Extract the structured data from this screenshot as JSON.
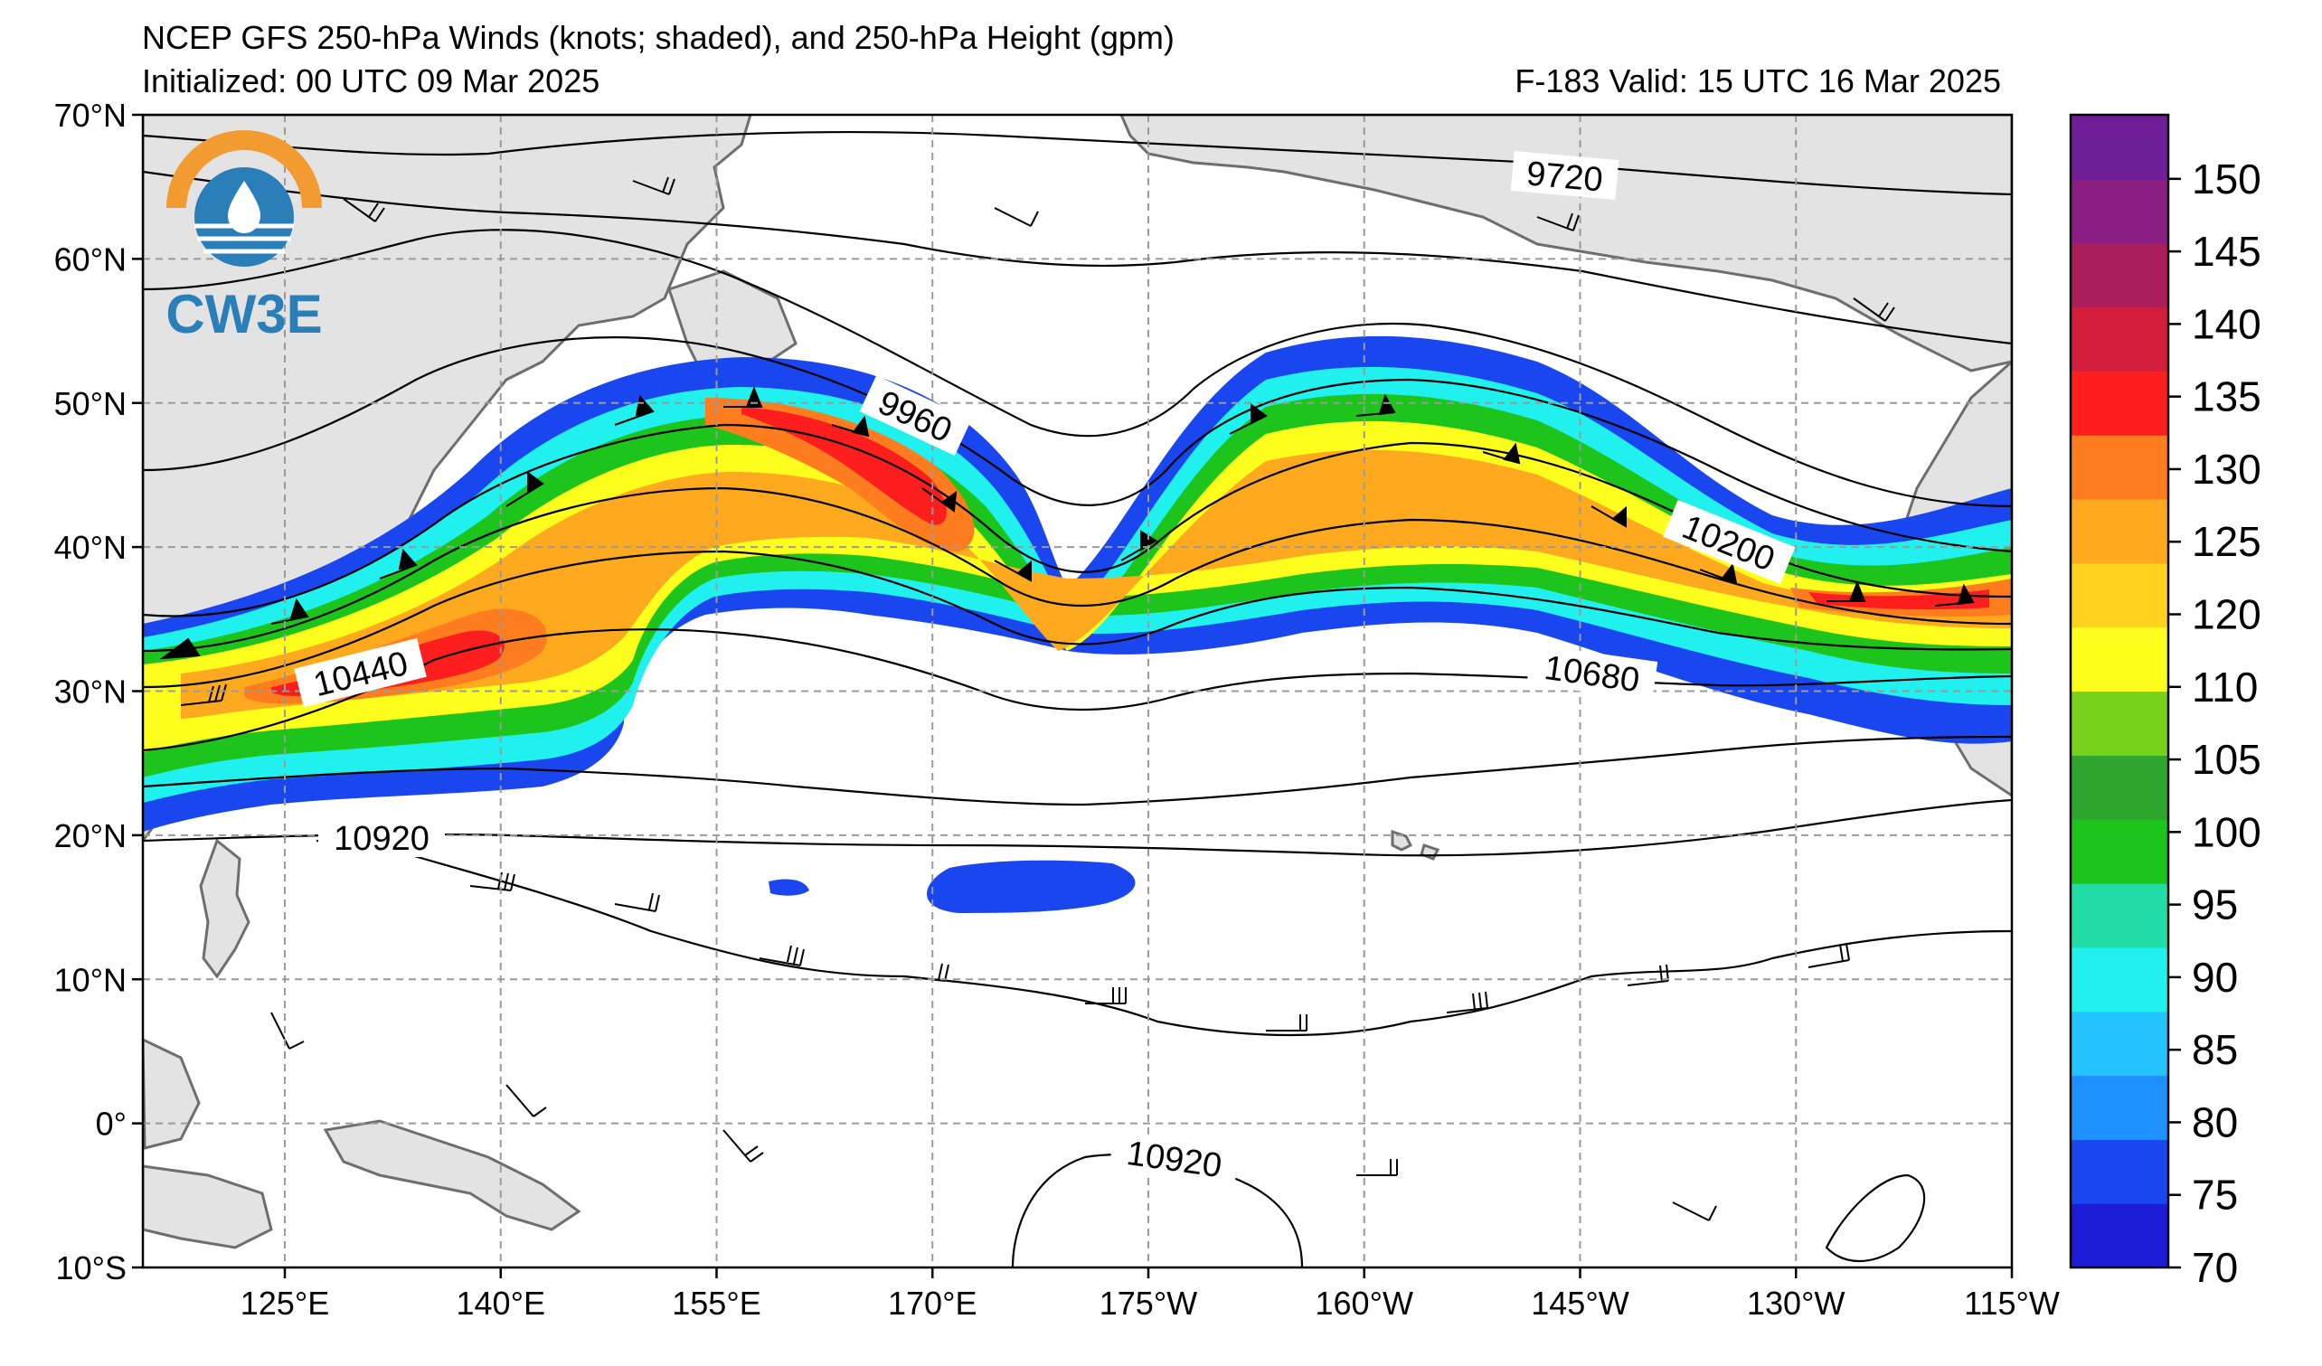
{
  "header": {
    "title": "NCEP GFS 250-hPa Winds (knots; shaded), and 250-hPa Height (gpm)",
    "initialized": "Initialized: 00 UTC 09 Mar 2025",
    "valid": "F-183  Valid: 15 UTC 16 Mar 2025"
  },
  "logo": {
    "text": "CW3E"
  },
  "axes": {
    "lon_ticks": [
      "125°E",
      "140°E",
      "155°E",
      "170°E",
      "175°W",
      "160°W",
      "145°W",
      "130°W",
      "115°W"
    ],
    "lat_ticks": [
      "70°N",
      "60°N",
      "50°N",
      "40°N",
      "30°N",
      "20°N",
      "10°N",
      "0°",
      "10°S"
    ]
  },
  "contour_labels": [
    {
      "text": "9720"
    },
    {
      "text": "9960"
    },
    {
      "text": "10200"
    },
    {
      "text": "10440"
    },
    {
      "text": "10680"
    },
    {
      "text": "10920"
    },
    {
      "text": "10920"
    }
  ],
  "colorbar": {
    "labels": [
      "70",
      "75",
      "80",
      "85",
      "90",
      "95",
      "100",
      "105",
      "110",
      "120",
      "125",
      "130",
      "135",
      "140",
      "145",
      "150"
    ],
    "colors": [
      "#1c1cd6",
      "#1a46f0",
      "#1e90ff",
      "#22c3ff",
      "#20f0ee",
      "#22dca8",
      "#1cc41c",
      "#2ea62e",
      "#76d21a",
      "#ffff1e",
      "#ffd21e",
      "#ffaa1e",
      "#ff7d1e",
      "#ff1e1e",
      "#d21e3c",
      "#aa1e5a",
      "#8a1e82",
      "#6e1e96"
    ]
  },
  "colors": {
    "land": "#e3e3e3",
    "coast": "#6e6e6e",
    "grid": "#9a9a9a",
    "logo_orange": "#f29b30",
    "logo_blue": "#2a7fb8"
  }
}
